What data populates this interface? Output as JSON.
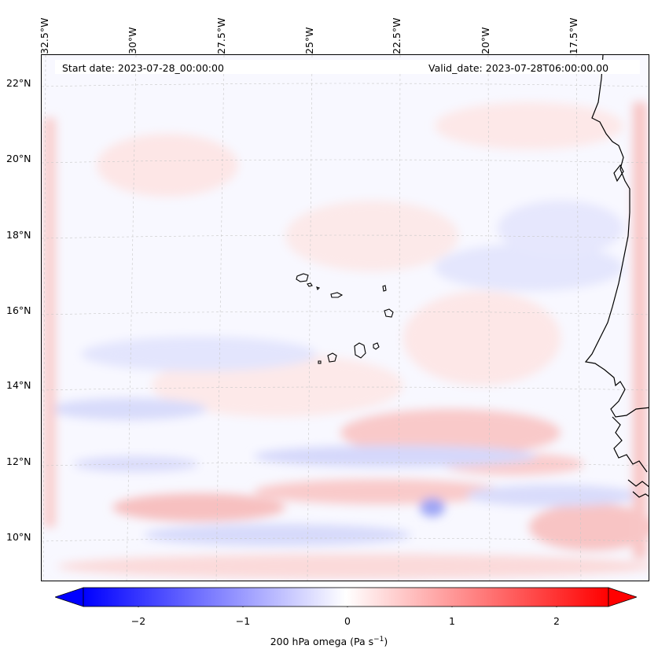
{
  "map": {
    "start_date": "Start date: 2023-07-28_00:00:00",
    "valid_date": "Valid_date: 2023-07-28T06:00:00.00",
    "lon_labels": [
      "32.5°W",
      "30°W",
      "27.5°W",
      "25°W",
      "22.5°W",
      "20°W",
      "17.5°W"
    ],
    "lat_labels": [
      "22°N",
      "20°N",
      "18°N",
      "16°N",
      "14°N",
      "12°N",
      "10°N"
    ],
    "colors": {
      "positive": "#ff0000",
      "negative": "#0000ff",
      "neutral": "#ffffff",
      "coast": "#000000",
      "grid": "#c8c8c8"
    }
  },
  "colorbar": {
    "ticks": [
      "−2",
      "−1",
      "0",
      "1",
      "2"
    ],
    "label_prefix": "200 hPa omega (Pa s",
    "label_exp": "−1",
    "label_suffix": ")",
    "range": [
      -2.6,
      2.6
    ]
  }
}
